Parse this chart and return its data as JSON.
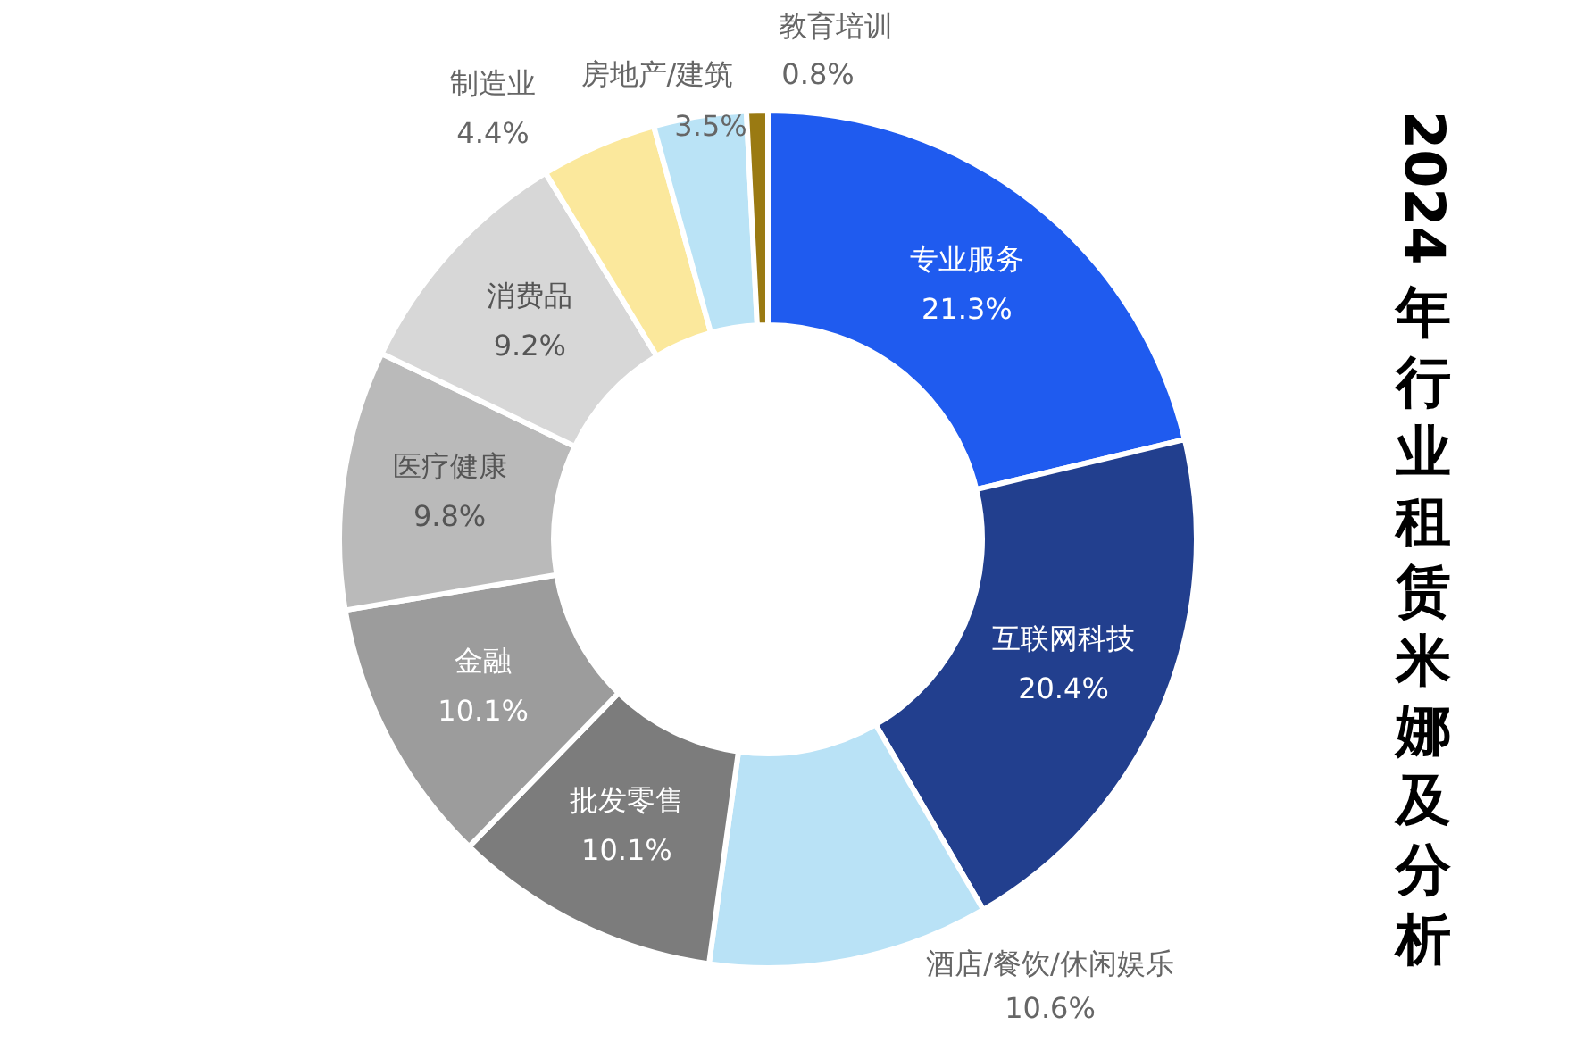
{
  "chart_data": {
    "type": "donut",
    "title": "2024年行业租赁米娜及分析",
    "categories": [
      "专业服务",
      "互联网科技",
      "酒店/餐饮/休闲娱乐",
      "批发零售",
      "金融",
      "医疗健康",
      "消费品",
      "制造业",
      "房地产/建筑",
      "教育培训"
    ],
    "values": [
      21.3,
      20.4,
      10.6,
      10.1,
      10.1,
      9.8,
      9.2,
      4.4,
      3.5,
      0.8
    ],
    "colors": [
      "#1f5bef",
      "#223f8e",
      "#b9e2f6",
      "#7c7c7c",
      "#9c9c9c",
      "#bababa",
      "#d7d7d7",
      "#fbe89c",
      "#bae3f6",
      "#9a7a12"
    ],
    "value_labels": [
      "21.3%",
      "20.4%",
      "10.6%",
      "10.1%",
      "10.1%",
      "9.8%",
      "9.2%",
      "4.4%",
      "3.5%",
      "0.8%"
    ],
    "legend": false
  }
}
